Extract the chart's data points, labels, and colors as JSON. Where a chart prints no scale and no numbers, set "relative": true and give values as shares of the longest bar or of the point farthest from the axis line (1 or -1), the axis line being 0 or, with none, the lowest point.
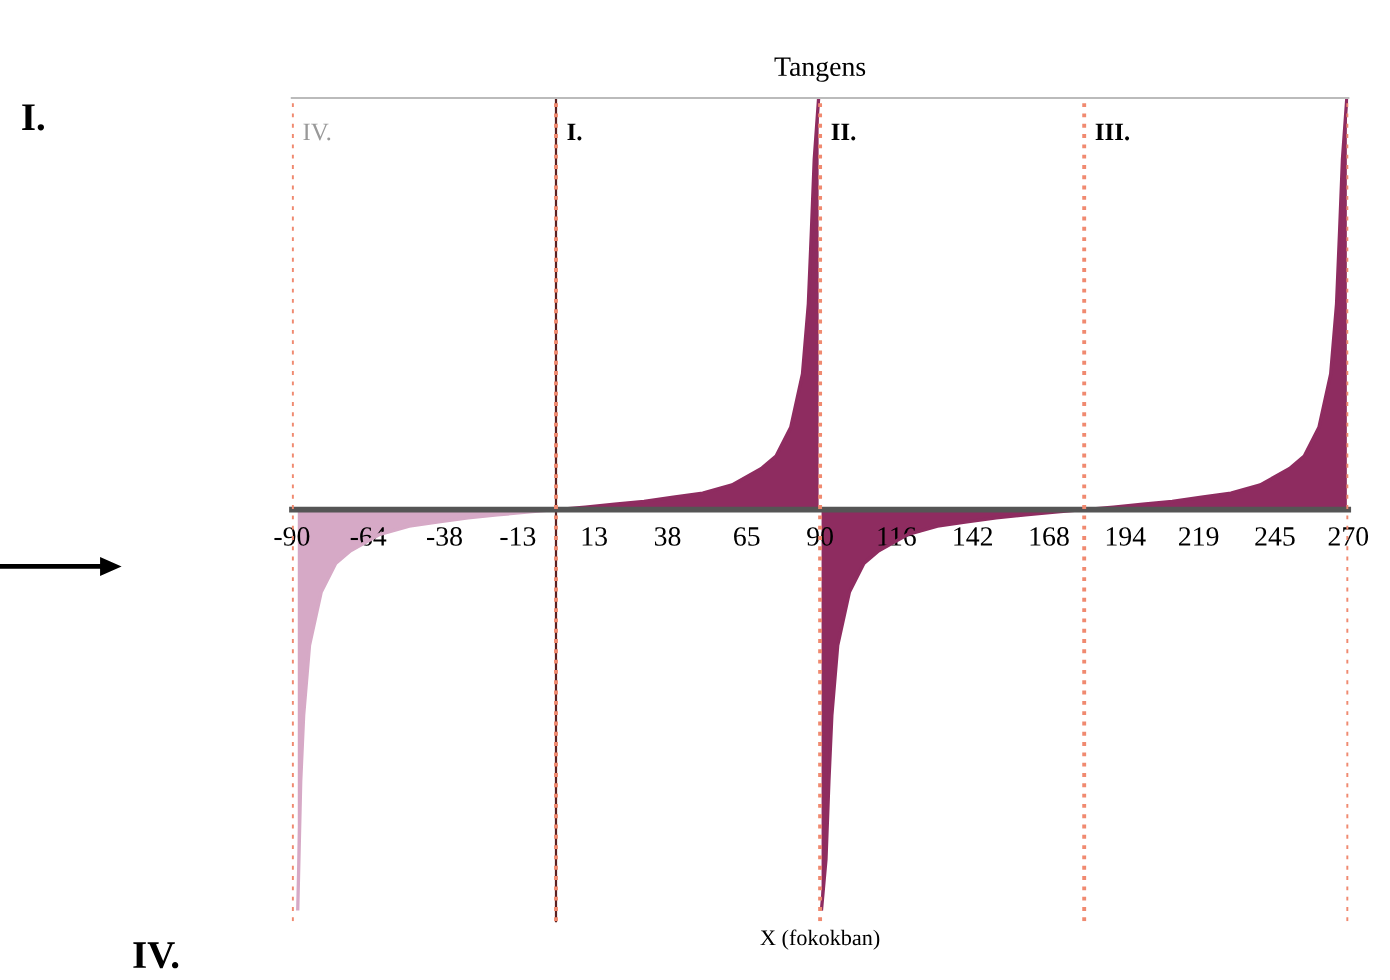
{
  "chart_data": {
    "type": "area",
    "title": "Tangens",
    "xlabel": "X (fokokban)",
    "relative": true,
    "legend": false,
    "grid": false,
    "xlim": [
      -90,
      270
    ],
    "xticks": [
      -90,
      -64,
      -38,
      -13,
      13,
      38,
      65,
      90,
      116,
      142,
      168,
      194,
      219,
      245,
      270
    ],
    "series": [
      {
        "color": "#d6a9c6",
        "x": [
          -88,
          -87,
          -86,
          -84,
          -80,
          -75,
          -70,
          -60,
          -50,
          -40,
          -30,
          -20,
          -10,
          0
        ],
        "values": [
          -0.97,
          -0.66,
          -0.5,
          -0.33,
          -0.2,
          -0.13,
          -0.1,
          -0.06,
          -0.04,
          -0.03,
          -0.02,
          -0.013,
          -0.006,
          0
        ]
      },
      {
        "color": "#8e2c60",
        "x": [
          0,
          10,
          20,
          30,
          40,
          50,
          60,
          70,
          75,
          80,
          84,
          86,
          87,
          88,
          89.5
        ],
        "values": [
          0,
          0.006,
          0.013,
          0.02,
          0.03,
          0.04,
          0.06,
          0.1,
          0.13,
          0.2,
          0.33,
          0.5,
          0.67,
          0.85,
          1
        ]
      },
      {
        "color": "#8e2c60",
        "x": [
          90.5,
          92,
          93,
          94,
          96,
          100,
          105,
          110,
          120,
          130,
          140,
          150,
          160,
          170,
          180
        ],
        "values": [
          -0.97,
          -0.85,
          -0.66,
          -0.5,
          -0.33,
          -0.2,
          -0.13,
          -0.1,
          -0.06,
          -0.04,
          -0.03,
          -0.02,
          -0.013,
          -0.006,
          0
        ]
      },
      {
        "color": "#8e2c60",
        "x": [
          180,
          190,
          200,
          210,
          220,
          230,
          240,
          250,
          255,
          260,
          264,
          266,
          267,
          268,
          269.5
        ],
        "values": [
          0,
          0.006,
          0.013,
          0.02,
          0.03,
          0.04,
          0.06,
          0.1,
          0.13,
          0.2,
          0.33,
          0.5,
          0.67,
          0.85,
          1
        ]
      }
    ],
    "ref_lines": [
      {
        "axis": "x",
        "value": -90,
        "color": "#f08a70",
        "line_style": "dotted"
      },
      {
        "axis": "x",
        "value": 0,
        "color": "#f08a70",
        "line_style": "dotted"
      },
      {
        "axis": "x",
        "value": 90,
        "color": "#f08a70",
        "line_style": "dotted"
      },
      {
        "axis": "x",
        "value": 180,
        "color": "#f08a70",
        "line_style": "dotted"
      },
      {
        "axis": "x",
        "value": 270,
        "color": "#f08a70",
        "line_style": "dotted"
      }
    ],
    "annotations": [
      "IV.",
      "I.",
      "II.",
      "III.",
      "I.",
      "IV."
    ]
  }
}
